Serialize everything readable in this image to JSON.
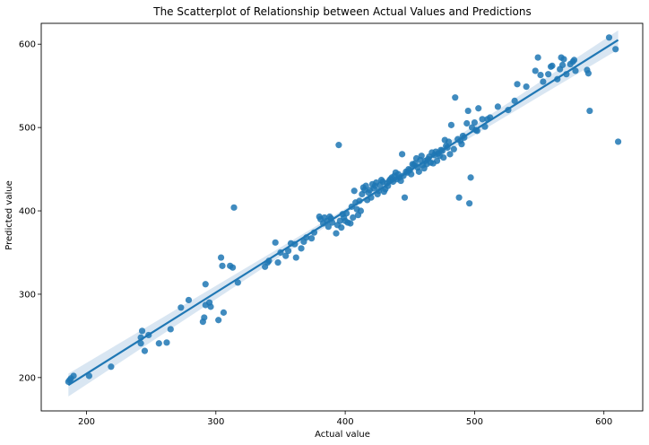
{
  "chart_data": {
    "type": "scatter",
    "title": "The Scatterplot of Relationship between Actual Values and Predictions",
    "xlabel": "Actual value",
    "ylabel": "Predicted value",
    "xlim": [
      165,
      630
    ],
    "ylim": [
      160,
      625
    ],
    "xticks": [
      200,
      300,
      400,
      500,
      600
    ],
    "yticks": [
      200,
      300,
      400,
      500,
      600
    ],
    "grid": false,
    "colors": {
      "points": "#1f77b4",
      "line": "#1f77b4",
      "band": "#aac7e3"
    },
    "regression": {
      "x": [
        186,
        611
      ],
      "y": [
        191,
        605
      ]
    },
    "points": [
      [
        186,
        195
      ],
      [
        187,
        197
      ],
      [
        188,
        199
      ],
      [
        190,
        202
      ],
      [
        202,
        202
      ],
      [
        219,
        213
      ],
      [
        242,
        241
      ],
      [
        242,
        248
      ],
      [
        243,
        256
      ],
      [
        245,
        232
      ],
      [
        248,
        251
      ],
      [
        256,
        241
      ],
      [
        262,
        242
      ],
      [
        265,
        258
      ],
      [
        273,
        284
      ],
      [
        279,
        293
      ],
      [
        290,
        267
      ],
      [
        291,
        272
      ],
      [
        292,
        287
      ],
      [
        292,
        312
      ],
      [
        295,
        290
      ],
      [
        296,
        285
      ],
      [
        302,
        269
      ],
      [
        304,
        344
      ],
      [
        305,
        334
      ],
      [
        306,
        278
      ],
      [
        311,
        334
      ],
      [
        313,
        332
      ],
      [
        314,
        404
      ],
      [
        317,
        314
      ],
      [
        338,
        333
      ],
      [
        340,
        338
      ],
      [
        341,
        340
      ],
      [
        346,
        362
      ],
      [
        348,
        338
      ],
      [
        350,
        350
      ],
      [
        354,
        346
      ],
      [
        356,
        352
      ],
      [
        358,
        361
      ],
      [
        361,
        360
      ],
      [
        362,
        344
      ],
      [
        366,
        355
      ],
      [
        368,
        363
      ],
      [
        370,
        368
      ],
      [
        374,
        367
      ],
      [
        376,
        374
      ],
      [
        380,
        393
      ],
      [
        381,
        390
      ],
      [
        383,
        385
      ],
      [
        384,
        392
      ],
      [
        386,
        388
      ],
      [
        387,
        381
      ],
      [
        388,
        393
      ],
      [
        389,
        391
      ],
      [
        390,
        386
      ],
      [
        393,
        373
      ],
      [
        394,
        383
      ],
      [
        395,
        479
      ],
      [
        396,
        388
      ],
      [
        397,
        380
      ],
      [
        398,
        396
      ],
      [
        399,
        392
      ],
      [
        400,
        388
      ],
      [
        401,
        397
      ],
      [
        402,
        386
      ],
      [
        404,
        385
      ],
      [
        405,
        405
      ],
      [
        406,
        392
      ],
      [
        407,
        424
      ],
      [
        408,
        410
      ],
      [
        409,
        402
      ],
      [
        410,
        395
      ],
      [
        411,
        412
      ],
      [
        412,
        400
      ],
      [
        413,
        420
      ],
      [
        414,
        428
      ],
      [
        415,
        425
      ],
      [
        416,
        430
      ],
      [
        417,
        413
      ],
      [
        418,
        422
      ],
      [
        419,
        425
      ],
      [
        420,
        416
      ],
      [
        421,
        432
      ],
      [
        422,
        427
      ],
      [
        423,
        430
      ],
      [
        424,
        434
      ],
      [
        425,
        420
      ],
      [
        426,
        424
      ],
      [
        427,
        431
      ],
      [
        428,
        437
      ],
      [
        429,
        435
      ],
      [
        430,
        423
      ],
      [
        431,
        426
      ],
      [
        432,
        433
      ],
      [
        433,
        430
      ],
      [
        434,
        436
      ],
      [
        435,
        438
      ],
      [
        436,
        440
      ],
      [
        437,
        435
      ],
      [
        438,
        442
      ],
      [
        439,
        446
      ],
      [
        440,
        438
      ],
      [
        441,
        444
      ],
      [
        442,
        440
      ],
      [
        443,
        436
      ],
      [
        444,
        468
      ],
      [
        445,
        442
      ],
      [
        446,
        416
      ],
      [
        447,
        447
      ],
      [
        448,
        446
      ],
      [
        449,
        450
      ],
      [
        450,
        449
      ],
      [
        451,
        444
      ],
      [
        452,
        456
      ],
      [
        453,
        455
      ],
      [
        454,
        457
      ],
      [
        455,
        463
      ],
      [
        456,
        452
      ],
      [
        457,
        447
      ],
      [
        458,
        461
      ],
      [
        459,
        466
      ],
      [
        460,
        455
      ],
      [
        461,
        451
      ],
      [
        462,
        460
      ],
      [
        463,
        456
      ],
      [
        464,
        462
      ],
      [
        465,
        465
      ],
      [
        466,
        458
      ],
      [
        467,
        470
      ],
      [
        468,
        457
      ],
      [
        469,
        467
      ],
      [
        470,
        471
      ],
      [
        471,
        460
      ],
      [
        472,
        469
      ],
      [
        473,
        466
      ],
      [
        474,
        473
      ],
      [
        475,
        472
      ],
      [
        476,
        464
      ],
      [
        477,
        485
      ],
      [
        478,
        478
      ],
      [
        479,
        476
      ],
      [
        480,
        483
      ],
      [
        481,
        468
      ],
      [
        482,
        503
      ],
      [
        484,
        474
      ],
      [
        485,
        536
      ],
      [
        487,
        486
      ],
      [
        488,
        416
      ],
      [
        489,
        484
      ],
      [
        490,
        480
      ],
      [
        491,
        490
      ],
      [
        492,
        488
      ],
      [
        494,
        505
      ],
      [
        495,
        520
      ],
      [
        496,
        409
      ],
      [
        497,
        440
      ],
      [
        498,
        500
      ],
      [
        500,
        506
      ],
      [
        501,
        497
      ],
      [
        502,
        496
      ],
      [
        503,
        523
      ],
      [
        506,
        510
      ],
      [
        508,
        501
      ],
      [
        510,
        510
      ],
      [
        512,
        512
      ],
      [
        518,
        525
      ],
      [
        526,
        521
      ],
      [
        531,
        532
      ],
      [
        533,
        552
      ],
      [
        540,
        549
      ],
      [
        547,
        568
      ],
      [
        549,
        584
      ],
      [
        551,
        563
      ],
      [
        553,
        555
      ],
      [
        557,
        564
      ],
      [
        559,
        573
      ],
      [
        560,
        574
      ],
      [
        564,
        558
      ],
      [
        566,
        570
      ],
      [
        567,
        584
      ],
      [
        568,
        575
      ],
      [
        569,
        582
      ],
      [
        571,
        564
      ],
      [
        574,
        576
      ],
      [
        576,
        579
      ],
      [
        577,
        581
      ],
      [
        578,
        568
      ],
      [
        587,
        569
      ],
      [
        588,
        565
      ],
      [
        589,
        520
      ],
      [
        604,
        608
      ],
      [
        609,
        594
      ],
      [
        611,
        483
      ]
    ]
  }
}
